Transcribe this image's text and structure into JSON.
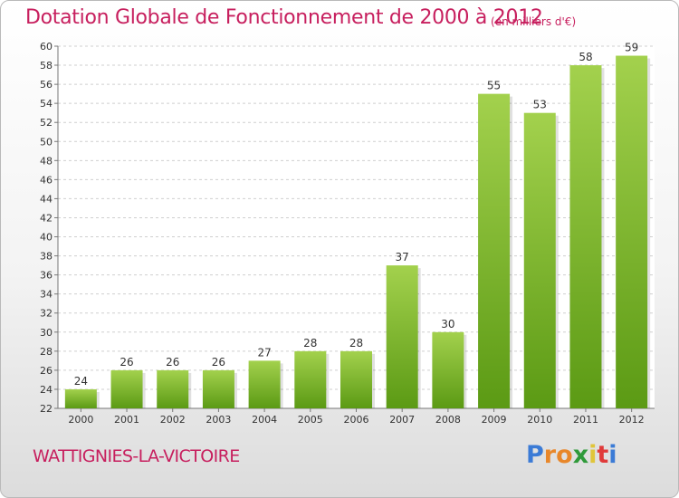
{
  "header": {
    "title": "Dotation Globale de Fonctionnement de 2000 à 2012",
    "unit": "(en milliers d'€)"
  },
  "footer": {
    "city": "WATTIGNIES-LA-VICTOIRE",
    "logo": "Proxiti"
  },
  "colors": {
    "title": "#c71f5e",
    "bar_light": "#a3d14d",
    "bar_dark": "#5b9a14",
    "logo_letters": [
      "#3b7bd6",
      "#e8872a",
      "#e8872a",
      "#2f9a3a",
      "#e0c53a",
      "#e03a3a",
      "#3b7bd6"
    ]
  },
  "chart_data": {
    "type": "bar",
    "categories": [
      "2000",
      "2001",
      "2002",
      "2003",
      "2004",
      "2005",
      "2006",
      "2007",
      "2008",
      "2009",
      "2010",
      "2011",
      "2012"
    ],
    "values": [
      24,
      26,
      26,
      26,
      27,
      28,
      28,
      37,
      30,
      55,
      53,
      58,
      59
    ],
    "ylim": [
      22,
      60
    ],
    "ytick_step": 2,
    "grid": "horizontal dashed",
    "data_labels": true
  }
}
